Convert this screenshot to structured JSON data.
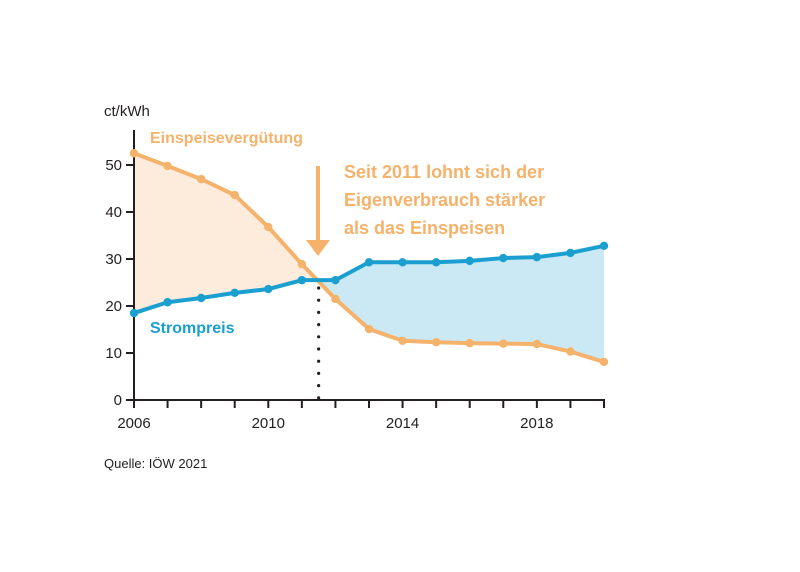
{
  "chart_data": {
    "type": "line",
    "title": "",
    "unit_label": "ct/kWh",
    "xlabel": "",
    "ylabel": "ct/kWh",
    "x": [
      2006,
      2007,
      2008,
      2009,
      2010,
      2011,
      2012,
      2013,
      2014,
      2015,
      2016,
      2017,
      2018,
      2019,
      2020
    ],
    "xlim": [
      2006,
      2020
    ],
    "ylim": [
      0,
      55
    ],
    "x_tick_labels": [
      "2006",
      "2010",
      "2014",
      "2018"
    ],
    "x_tick_label_values": [
      2006,
      2010,
      2014,
      2018
    ],
    "y_ticks": [
      0,
      10,
      20,
      30,
      40,
      50
    ],
    "y_tick_labels": [
      "0",
      "10",
      "20",
      "30",
      "40",
      "50"
    ],
    "grid": false,
    "series": [
      {
        "name": "Einspeisevergütung",
        "color": "#f5b26b",
        "fill_color": "#fdebdb",
        "values": [
          52.5,
          49.8,
          47.0,
          43.6,
          36.8,
          28.9,
          21.5,
          15.1,
          12.6,
          12.3,
          12.1,
          12.0,
          11.9,
          10.3,
          8.1
        ]
      },
      {
        "name": "Strompreis",
        "color": "#1a9fd0",
        "fill_color": "#cbe8f5",
        "values": [
          18.5,
          20.8,
          21.7,
          22.8,
          23.6,
          25.5,
          25.5,
          29.3,
          29.3,
          29.3,
          29.6,
          30.2,
          30.4,
          31.3,
          32.8
        ]
      }
    ],
    "crossover_year": 2011.5,
    "annotations": [
      {
        "lines": [
          "Seit 2011 lohnt sich der",
          "Eigenverbrauch stärker",
          "als das Einspeisen"
        ],
        "color": "#f5b26b",
        "arrow": "down"
      }
    ],
    "source": "Quelle: IÖW 2021"
  }
}
